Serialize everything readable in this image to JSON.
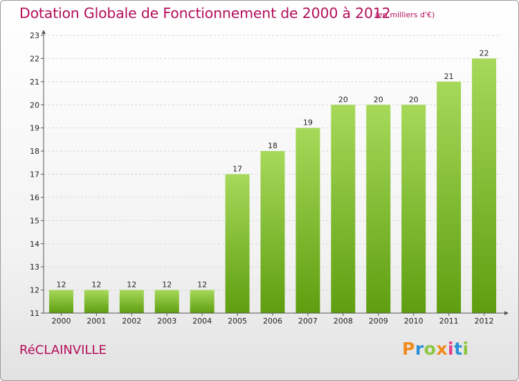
{
  "header": {
    "title": "Dotation Globale de Fonctionnement de 2000 à 2012",
    "unit": "(en milliers d'€)"
  },
  "footer": {
    "commune": "RéCLAINVILLE",
    "logo": {
      "letters": [
        "P",
        "r",
        "o",
        "x",
        "i",
        "t",
        "i"
      ],
      "colors": [
        "#f08a1c",
        "#2a8fd6",
        "#8cc63f",
        "#f08a1c",
        "#e63c8a",
        "#2a8fd6",
        "#8cc63f"
      ]
    }
  },
  "colors": {
    "title": "#b40d5a",
    "bar_top": "#a6d95a",
    "bar_bottom": "#5f9e10",
    "grid": "#d6d6d6",
    "axis": "#555555"
  },
  "chart_data": {
    "type": "bar",
    "title": "Dotation Globale de Fonctionnement de 2000 à 2012",
    "subtitle": "(en milliers d'€)",
    "xlabel": "",
    "ylabel": "",
    "categories": [
      "2000",
      "2001",
      "2002",
      "2003",
      "2004",
      "2005",
      "2006",
      "2007",
      "2008",
      "2009",
      "2010",
      "2011",
      "2012"
    ],
    "values": [
      12,
      12,
      12,
      12,
      12,
      17,
      18,
      19,
      20,
      20,
      20,
      21,
      22
    ],
    "ylim": [
      11,
      23
    ],
    "yticks": [
      11,
      12,
      13,
      14,
      15,
      16,
      17,
      18,
      19,
      20,
      21,
      22,
      23
    ],
    "grid": true,
    "legend": "none"
  }
}
